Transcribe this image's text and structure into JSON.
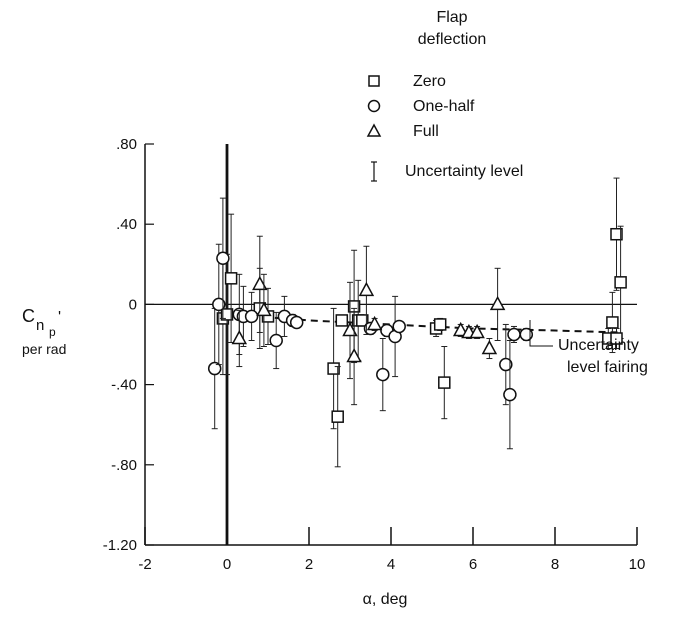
{
  "chart_data": {
    "type": "scatter",
    "title": "",
    "xlabel": "α, deg",
    "ylabel_main": "C",
    "ylabel_sub": "n",
    "ylabel_subsub": "p",
    "ylabel_prime": "'",
    "ylabel_units": "per rad",
    "xlim": [
      -2,
      10
    ],
    "ylim": [
      -1.2,
      0.8
    ],
    "x_ticks": [
      {
        "value": -2,
        "label": "-2"
      },
      {
        "value": 0,
        "label": "0"
      },
      {
        "value": 2,
        "label": "2"
      },
      {
        "value": 4,
        "label": "4"
      },
      {
        "value": 6,
        "label": "6"
      },
      {
        "value": 8,
        "label": "8"
      },
      {
        "value": 10,
        "label": "10"
      }
    ],
    "y_ticks": [
      {
        "value": 0.8,
        "label": ".80"
      },
      {
        "value": 0.4,
        "label": ".40"
      },
      {
        "value": 0,
        "label": "0"
      },
      {
        "value": -0.4,
        "label": "-.40"
      },
      {
        "value": -0.8,
        "label": "-.80"
      },
      {
        "value": -1.2,
        "label": "-1.20"
      }
    ],
    "legend": {
      "title_line1": "Flap",
      "title_line2": "deflection",
      "placement": "top-right",
      "items": [
        {
          "marker": "square",
          "label": "Zero"
        },
        {
          "marker": "circle",
          "label": "One-half"
        },
        {
          "marker": "triangle",
          "label": "Full"
        },
        {
          "marker": "errorbar",
          "label": "Uncertainty level"
        }
      ]
    },
    "annotation": {
      "line1": "Uncertainty",
      "line2": "level fairing"
    },
    "fairing": {
      "x": [
        0,
        2,
        4,
        6,
        8,
        9.6
      ],
      "y": [
        -0.05,
        -0.08,
        -0.1,
        -0.12,
        -0.13,
        -0.14
      ]
    },
    "series": [
      {
        "name": "Zero",
        "marker": "square",
        "points": [
          {
            "x": -0.1,
            "y": -0.07,
            "err": 0.28
          },
          {
            "x": 0.0,
            "y": -0.05,
            "err": 0.3
          },
          {
            "x": 0.1,
            "y": 0.13,
            "err": 0.32
          },
          {
            "x": 0.8,
            "y": -0.02,
            "err": 0.2
          },
          {
            "x": 1.0,
            "y": -0.06,
            "err": 0.14
          },
          {
            "x": 2.6,
            "y": -0.32,
            "err": 0.3
          },
          {
            "x": 2.7,
            "y": -0.56,
            "err": 0.25
          },
          {
            "x": 2.8,
            "y": -0.08,
            "err": 0.02
          },
          {
            "x": 3.1,
            "y": -0.01,
            "err": 0.28
          },
          {
            "x": 3.2,
            "y": -0.08,
            "err": 0.2
          },
          {
            "x": 3.3,
            "y": -0.08,
            "err": 0.02
          },
          {
            "x": 5.1,
            "y": -0.12,
            "err": 0.04
          },
          {
            "x": 5.2,
            "y": -0.1,
            "err": 0.03
          },
          {
            "x": 5.3,
            "y": -0.39,
            "err": 0.18
          },
          {
            "x": 9.3,
            "y": -0.17,
            "err": 0.05
          },
          {
            "x": 9.4,
            "y": -0.09,
            "err": 0.15
          },
          {
            "x": 9.5,
            "y": 0.35,
            "err": 0.28
          },
          {
            "x": 9.6,
            "y": 0.11,
            "err": 0.28
          },
          {
            "x": 9.5,
            "y": -0.17,
            "err": 0.05
          }
        ]
      },
      {
        "name": "One-half",
        "marker": "circle",
        "points": [
          {
            "x": -0.3,
            "y": -0.32,
            "err": 0.3
          },
          {
            "x": -0.2,
            "y": 0.0,
            "err": 0.3
          },
          {
            "x": -0.1,
            "y": 0.23,
            "err": 0.3
          },
          {
            "x": 0.3,
            "y": -0.05,
            "err": 0.2
          },
          {
            "x": 0.4,
            "y": -0.06,
            "err": 0.15
          },
          {
            "x": 0.6,
            "y": -0.06,
            "err": 0.12
          },
          {
            "x": 1.2,
            "y": -0.18,
            "err": 0.14
          },
          {
            "x": 1.4,
            "y": -0.06,
            "err": 0.1
          },
          {
            "x": 1.6,
            "y": -0.08,
            "err": 0.03
          },
          {
            "x": 1.7,
            "y": -0.09,
            "err": 0.02
          },
          {
            "x": 3.5,
            "y": -0.12,
            "err": 0.03
          },
          {
            "x": 3.8,
            "y": -0.35,
            "err": 0.18
          },
          {
            "x": 3.9,
            "y": -0.13,
            "err": 0.03
          },
          {
            "x": 4.1,
            "y": -0.16,
            "err": 0.2
          },
          {
            "x": 4.2,
            "y": -0.11,
            "err": 0.02
          },
          {
            "x": 6.8,
            "y": -0.3,
            "err": 0.2
          },
          {
            "x": 6.9,
            "y": -0.45,
            "err": 0.27
          },
          {
            "x": 7.0,
            "y": -0.15,
            "err": 0.04
          },
          {
            "x": 7.3,
            "y": -0.15,
            "err": 0.03
          }
        ]
      },
      {
        "name": "Full",
        "marker": "triangle",
        "points": [
          {
            "x": 0.3,
            "y": -0.17,
            "err": 0.14
          },
          {
            "x": 0.8,
            "y": 0.1,
            "err": 0.24
          },
          {
            "x": 0.9,
            "y": -0.03,
            "err": 0.18
          },
          {
            "x": 3.0,
            "y": -0.13,
            "err": 0.24
          },
          {
            "x": 3.1,
            "y": -0.26,
            "err": 0.24
          },
          {
            "x": 3.4,
            "y": 0.07,
            "err": 0.22
          },
          {
            "x": 3.6,
            "y": -0.1,
            "err": 0.03
          },
          {
            "x": 5.7,
            "y": -0.13,
            "err": 0.03
          },
          {
            "x": 5.9,
            "y": -0.14,
            "err": 0.03
          },
          {
            "x": 6.1,
            "y": -0.14,
            "err": 0.03
          },
          {
            "x": 6.4,
            "y": -0.22,
            "err": 0.05
          },
          {
            "x": 6.6,
            "y": 0.0,
            "err": 0.18
          }
        ]
      }
    ]
  }
}
